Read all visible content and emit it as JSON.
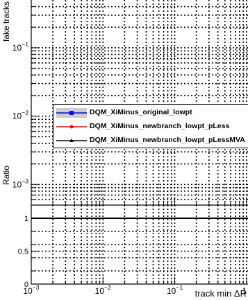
{
  "chart_data": [
    {
      "type": "line",
      "panel": "top",
      "ylabel": "fake tracks",
      "yscale": "log",
      "xscale": "log",
      "ylim": [
        0.0005,
        0.5
      ],
      "xlim": [
        0.001,
        1.05
      ],
      "ytick_labels": [
        "10⁻³",
        "10⁻²",
        "10⁻¹"
      ],
      "grid": true,
      "legend_position": "center-left",
      "series": [
        {
          "name": "DQM_XiMinus_original_lowpt",
          "color": "#0000ff",
          "marker": "square",
          "values": []
        },
        {
          "name": "DQM_XiMinus_newbranch_lowpt_pLess",
          "color": "#ff0000",
          "marker": "circle",
          "values": []
        },
        {
          "name": "DQM_XiMinus_newbranch_lowpt_pLessMVA",
          "color": "#000000",
          "marker": "triangle",
          "values": []
        }
      ]
    },
    {
      "type": "line",
      "panel": "bottom",
      "ylabel": "Ratio",
      "xlabel": "track min ΔR",
      "xscale": "log",
      "ylim": [
        0,
        1.2
      ],
      "xlim": [
        0.001,
        1.05
      ],
      "ytick_labels": [
        "0",
        "0.5",
        "1"
      ],
      "xtick_labels": [
        "10⁻³",
        "10⁻²",
        "10⁻¹",
        "1"
      ],
      "reference_line": 1,
      "grid": true
    }
  ],
  "colors": {
    "axis": "#000000",
    "grid": "#000000",
    "legend_fill": "#cccccc"
  }
}
